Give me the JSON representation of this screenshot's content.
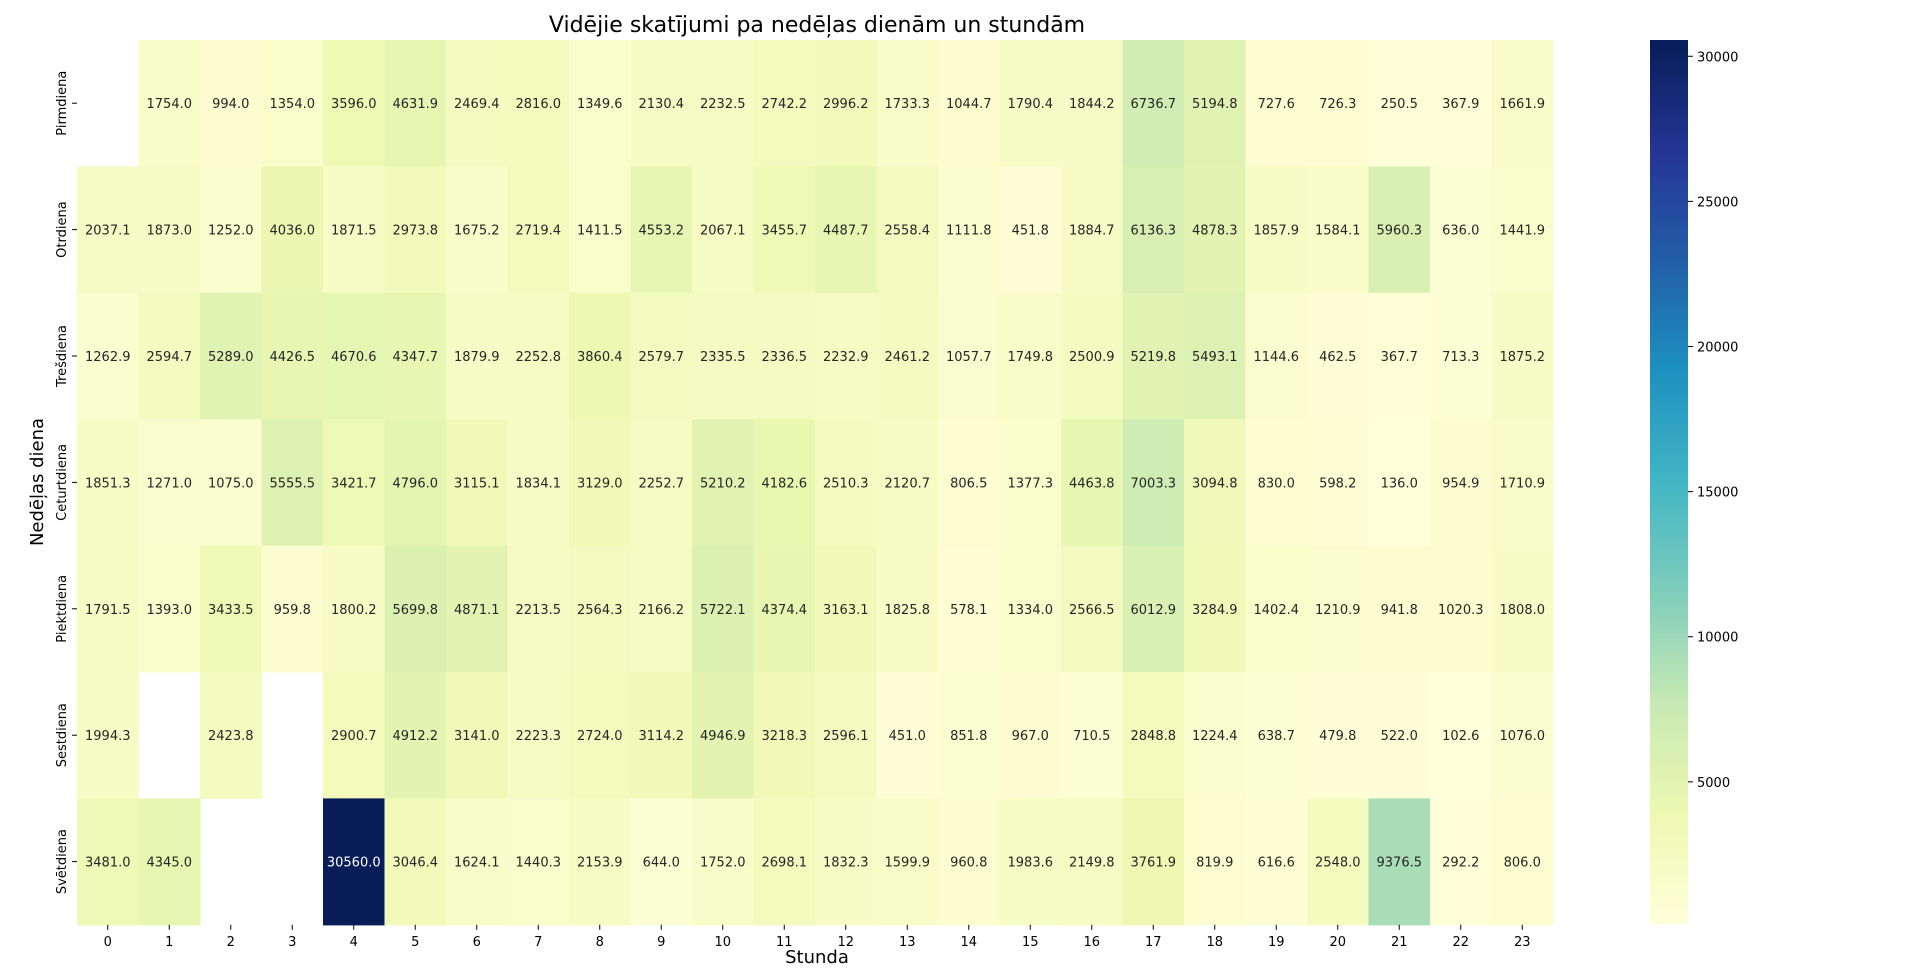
{
  "chart_data": {
    "type": "heatmap",
    "title": "Vidējie skatījumi pa nedēļas dienām un stundām",
    "xlabel": "Stunda",
    "ylabel": "Nedēļas diena",
    "x": [
      "0",
      "1",
      "2",
      "3",
      "4",
      "5",
      "6",
      "7",
      "8",
      "9",
      "10",
      "11",
      "12",
      "13",
      "14",
      "15",
      "16",
      "17",
      "18",
      "19",
      "20",
      "21",
      "22",
      "23"
    ],
    "y": [
      "Pirmdiena",
      "Otrdiena",
      "Trešdiena",
      "Ceturtdiena",
      "Piektdiena",
      "Sestdiena",
      "Svētdiena"
    ],
    "values": [
      [
        null,
        1754.0,
        994.0,
        1354.0,
        3596.0,
        4631.9,
        2469.4,
        2816.0,
        1349.6,
        2130.4,
        2232.5,
        2742.2,
        2996.2,
        1733.3,
        1044.7,
        1790.4,
        1844.2,
        6736.7,
        5194.8,
        727.6,
        726.3,
        250.5,
        367.9,
        1661.9
      ],
      [
        2037.1,
        1873.0,
        1252.0,
        4036.0,
        1871.5,
        2973.8,
        1675.2,
        2719.4,
        1411.5,
        4553.2,
        2067.1,
        3455.7,
        4487.7,
        2558.4,
        1111.8,
        451.8,
        1884.7,
        6136.3,
        4878.3,
        1857.9,
        1584.1,
        5960.3,
        636.0,
        1441.9
      ],
      [
        1262.9,
        2594.7,
        5289.0,
        4426.5,
        4670.6,
        4347.7,
        1879.9,
        2252.8,
        3860.4,
        2579.7,
        2335.5,
        2336.5,
        2232.9,
        2461.2,
        1057.7,
        1749.8,
        2500.9,
        5219.8,
        5493.1,
        1144.6,
        462.5,
        367.7,
        713.3,
        1875.2
      ],
      [
        1851.3,
        1271.0,
        1075.0,
        5555.5,
        3421.7,
        4796.0,
        3115.1,
        1834.1,
        3129.0,
        2252.7,
        5210.2,
        4182.6,
        2510.3,
        2120.7,
        806.5,
        1377.3,
        4463.8,
        7003.3,
        3094.8,
        830.0,
        598.2,
        136.0,
        954.9,
        1710.9
      ],
      [
        1791.5,
        1393.0,
        3433.5,
        959.8,
        1800.2,
        5699.8,
        4871.1,
        2213.5,
        2564.3,
        2166.2,
        5722.1,
        4374.4,
        3163.1,
        1825.8,
        578.1,
        1334.0,
        2566.5,
        6012.9,
        3284.9,
        1402.4,
        1210.9,
        941.8,
        1020.3,
        1808.0
      ],
      [
        1994.3,
        null,
        2423.8,
        null,
        2900.7,
        4912.2,
        3141.0,
        2223.3,
        2724.0,
        3114.2,
        4946.9,
        3218.3,
        2596.1,
        451.0,
        851.8,
        967.0,
        710.5,
        2848.8,
        1224.4,
        638.7,
        479.8,
        522.0,
        102.6,
        1076.0
      ],
      [
        3481.0,
        4345.0,
        null,
        null,
        30560.0,
        3046.4,
        1624.1,
        1440.3,
        2153.9,
        644.0,
        1752.0,
        2698.1,
        1832.3,
        1599.9,
        960.8,
        1983.6,
        2149.8,
        3761.9,
        819.9,
        616.6,
        2548.0,
        9376.5,
        292.2,
        806.0
      ]
    ],
    "colorbar": {
      "min": 102.6,
      "max": 30560.0,
      "ticks": [
        5000,
        10000,
        15000,
        20000,
        25000,
        30000
      ],
      "colormap": "YlGnBu"
    },
    "colormap_stops": [
      "#ffffd9",
      "#edf8b1",
      "#c7e9b4",
      "#7fcdbb",
      "#41b6c4",
      "#1d91c0",
      "#225ea8",
      "#253494",
      "#081d58"
    ]
  }
}
